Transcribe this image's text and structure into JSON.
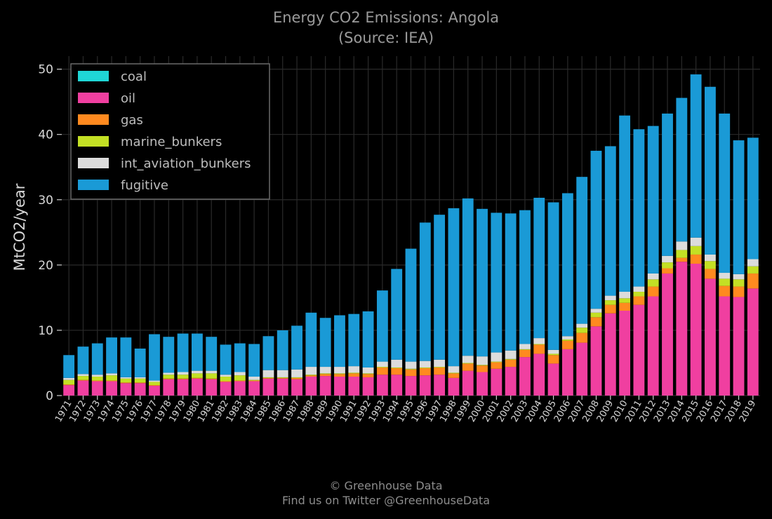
{
  "title": "Energy CO2 Emissions: Angola",
  "subtitle": "(Source: IEA)",
  "footer": {
    "line1": "© Greenhouse Data",
    "line2": "Find us on Twitter @GreenhouseData"
  },
  "colors": {
    "coal": "#1fd6d6",
    "oil": "#f03fa0",
    "gas": "#ff8a1f",
    "marine_bunkers": "#c3e024",
    "int_aviation_bunkers": "#dcdcdc",
    "fugitive": "#1a9ad6"
  },
  "chart_data": {
    "type": "bar",
    "stacked": true,
    "ylabel": "MtCO2/year",
    "xlabel": "",
    "ylim": [
      0,
      52
    ],
    "yticks": [
      0,
      10,
      20,
      30,
      40,
      50
    ],
    "grid": true,
    "legend_position": "top-left",
    "categories": [
      "1971",
      "1972",
      "1973",
      "1974",
      "1975",
      "1976",
      "1977",
      "1978",
      "1979",
      "1980",
      "1981",
      "1982",
      "1983",
      "1984",
      "1985",
      "1986",
      "1987",
      "1988",
      "1989",
      "1990",
      "1991",
      "1992",
      "1993",
      "1994",
      "1995",
      "1996",
      "1997",
      "1998",
      "1999",
      "2000",
      "2001",
      "2002",
      "2003",
      "2004",
      "2005",
      "2006",
      "2007",
      "2008",
      "2009",
      "2010",
      "2011",
      "2012",
      "2013",
      "2014",
      "2015",
      "2016",
      "2017",
      "2018",
      "2019"
    ],
    "series": [
      {
        "name": "coal",
        "values": [
          0,
          0,
          0,
          0,
          0,
          0,
          0,
          0,
          0,
          0,
          0,
          0,
          0,
          0,
          0,
          0,
          0,
          0,
          0,
          0,
          0,
          0,
          0,
          0,
          0,
          0,
          0,
          0,
          0,
          0,
          0,
          0,
          0,
          0,
          0,
          0,
          0,
          0,
          0,
          0,
          0,
          0,
          0,
          0,
          0,
          0,
          0,
          0,
          0
        ]
      },
      {
        "name": "oil",
        "values": [
          1.6,
          2.3,
          2.2,
          2.2,
          1.9,
          1.9,
          1.5,
          2.5,
          2.5,
          2.6,
          2.5,
          2.1,
          2.2,
          2.2,
          2.6,
          2.6,
          2.5,
          2.9,
          3.0,
          2.9,
          2.9,
          2.8,
          3.2,
          3.2,
          3.0,
          3.1,
          3.2,
          2.7,
          3.8,
          3.6,
          4.1,
          4.4,
          5.9,
          6.4,
          4.9,
          7.1,
          8.1,
          10.6,
          12.6,
          13.0,
          13.9,
          15.2,
          18.7,
          20.5,
          20.2,
          17.9,
          15.2,
          15.1,
          16.4
        ]
      },
      {
        "name": "gas",
        "values": [
          0.1,
          0.1,
          0.1,
          0.1,
          0.1,
          0.1,
          0.1,
          0.1,
          0.1,
          0.1,
          0.1,
          0.1,
          0.1,
          0.1,
          0.1,
          0.1,
          0.2,
          0.2,
          0.3,
          0.4,
          0.5,
          0.5,
          1.1,
          1.0,
          1.0,
          1.1,
          1.1,
          0.7,
          1.1,
          1.0,
          1.0,
          1.1,
          1.1,
          1.4,
          1.3,
          1.3,
          1.5,
          1.4,
          1.3,
          1.2,
          1.3,
          1.5,
          0.8,
          0.6,
          1.4,
          1.5,
          1.6,
          1.6,
          2.3
        ]
      },
      {
        "name": "marine_bunkers",
        "values": [
          0.7,
          0.6,
          0.6,
          0.8,
          0.6,
          0.6,
          0.5,
          0.6,
          0.6,
          0.7,
          0.8,
          0.7,
          0.8,
          0.1,
          0.1,
          0.1,
          0.1,
          0.1,
          0.1,
          0.1,
          0.1,
          0.1,
          0.1,
          0.1,
          0.1,
          0.1,
          0.1,
          0.1,
          0.1,
          0.1,
          0.1,
          0.1,
          0.1,
          0.1,
          0.2,
          0.2,
          0.8,
          0.7,
          0.7,
          0.7,
          0.7,
          1.1,
          0.9,
          1.2,
          1.3,
          1.2,
          1.1,
          1.1,
          1.1
        ]
      },
      {
        "name": "int_aviation_bunkers",
        "values": [
          0.3,
          0.3,
          0.3,
          0.3,
          0.2,
          0.2,
          0.2,
          0.3,
          0.4,
          0.4,
          0.4,
          0.3,
          0.5,
          0.5,
          1.1,
          1.1,
          1.2,
          1.2,
          1.0,
          1.0,
          1.0,
          0.9,
          0.8,
          1.2,
          1.1,
          1.0,
          1.1,
          1.0,
          1.1,
          1.3,
          1.4,
          1.3,
          0.8,
          0.9,
          0.6,
          0.5,
          0.6,
          0.6,
          0.7,
          1.0,
          0.8,
          0.9,
          1.0,
          1.3,
          1.3,
          1.0,
          0.9,
          0.8,
          1.1
        ]
      },
      {
        "name": "fugitive",
        "values": [
          3.5,
          4.2,
          4.8,
          5.5,
          6.1,
          4.4,
          7.1,
          5.5,
          5.9,
          5.7,
          5.2,
          4.6,
          4.4,
          5.0,
          5.2,
          6.1,
          6.7,
          8.3,
          7.5,
          7.9,
          8.0,
          8.6,
          10.9,
          13.9,
          17.3,
          21.2,
          22.2,
          24.2,
          24.1,
          22.6,
          21.4,
          21.0,
          20.5,
          21.5,
          22.6,
          21.9,
          22.5,
          24.2,
          22.9,
          27.0,
          24.1,
          22.6,
          21.8,
          22.0,
          25.0,
          25.7,
          24.4,
          20.5,
          18.6
        ]
      }
    ]
  }
}
